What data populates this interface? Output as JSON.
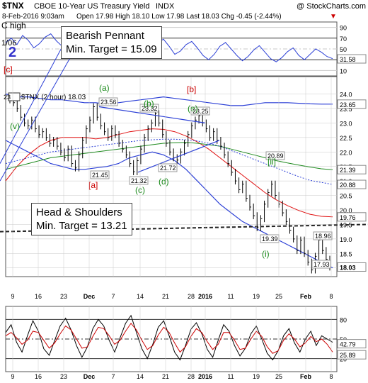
{
  "header": {
    "symbol": "$TNX",
    "name": "CBOE 10-Year US Treasury Yield",
    "exchange": "INDX",
    "copyright": "@ StockCharts.com",
    "date": "8-Feb-2016 9:03am",
    "quote": "Open 17.98  High 18.10  Low 17.98  Last 18.03  Chg -0.45 (-2.44%)",
    "chg_arrow": "▼"
  },
  "annotations": {
    "pennant": {
      "title": "Bearish Pennant",
      "target": "Min. Target = 15.09"
    },
    "hs": {
      "title": "Head & Shoulders",
      "target": "Min. Target = 13.21"
    }
  },
  "colors": {
    "price": "#000000",
    "blue_line": "#2b3fd6",
    "red_ma": "#e01010",
    "green_ma": "#1e8a1e",
    "dotted_ma": "#2b3fd6",
    "wave_green": "#1a8a1a",
    "wave_red": "#cc0000",
    "neckline": "#222222",
    "rsi_line": "#2b3fd6",
    "grid": "#c9c9c9",
    "panel_border": "#555555"
  },
  "chart_data": [
    {
      "type": "line",
      "panel": "top-rsi",
      "ylabels": [
        "90",
        "70",
        "50",
        "30",
        "10"
      ],
      "ylim": [
        0,
        100
      ],
      "last_value_label": "31.58",
      "side_labels": [
        "C high",
        "2",
        "1/06",
        "[c]"
      ],
      "points": [
        62,
        70,
        58,
        75,
        66,
        52,
        60,
        72,
        78,
        65,
        55,
        60,
        68,
        58,
        45,
        52,
        62,
        70,
        60,
        48,
        55,
        66,
        72,
        60,
        50,
        42,
        50,
        62,
        68,
        55,
        40,
        46,
        58,
        64,
        52,
        38,
        30,
        40,
        55,
        62,
        50,
        38,
        28,
        36,
        48,
        56,
        44,
        32,
        26,
        34,
        45,
        52,
        38,
        30,
        40,
        50,
        44,
        36,
        32
      ]
    },
    {
      "type": "line",
      "panel": "main",
      "title": "$TNX (2 hour) 18.03",
      "x_tick_labels": [
        "9",
        "16",
        "23",
        "Dec",
        "7",
        "14",
        "21",
        "28",
        "2016",
        "11",
        "19",
        "25",
        "Feb",
        "8"
      ],
      "ylim": [
        17.7,
        24.6
      ],
      "ylabels": [
        "24.0",
        "23.5",
        "23.0",
        "22.5",
        "22.0",
        "21.5",
        "21.0",
        "20.5",
        "20.0",
        "19.5",
        "19.0",
        "18.5",
        "18.0"
      ],
      "right_value_labels": [
        "23.65",
        "21.39",
        "20.88",
        "19.76",
        "18.03"
      ],
      "price": [
        23.8,
        23.7,
        23.5,
        23.2,
        23.0,
        22.9,
        23.1,
        22.8,
        22.6,
        22.7,
        22.5,
        22.3,
        22.4,
        22.2,
        22.0,
        21.8,
        22.1,
        21.6,
        21.45,
        21.9,
        22.4,
        22.8,
        23.1,
        23.56,
        23.2,
        22.9,
        22.7,
        22.5,
        22.8,
        22.6,
        22.3,
        22.1,
        21.9,
        21.6,
        21.32,
        21.7,
        22.1,
        22.5,
        22.8,
        23.0,
        23.32,
        23.0,
        22.6,
        22.3,
        22.0,
        21.8,
        21.72,
        22.0,
        22.3,
        22.6,
        22.9,
        23.1,
        23.25,
        23.0,
        22.8,
        22.5,
        22.7,
        22.4,
        22.2,
        21.9,
        21.6,
        21.3,
        21.0,
        20.7,
        20.89,
        20.4,
        20.1,
        19.8,
        19.39,
        19.7,
        20.2,
        20.6,
        20.89,
        20.5,
        20.2,
        19.9,
        19.6,
        19.3,
        19.0,
        18.6,
        18.96,
        18.5,
        18.2,
        17.93,
        18.4,
        18.96,
        18.6,
        18.3,
        18.03
      ],
      "upper_band": [
        24.0,
        23.9,
        23.9,
        23.85,
        23.8,
        23.8,
        23.75,
        23.7,
        23.7,
        23.65,
        23.7,
        23.75,
        23.8,
        23.85,
        23.9,
        23.85,
        23.8,
        23.75,
        23.7,
        23.65,
        23.6,
        23.6,
        23.65,
        23.7,
        23.7,
        23.7,
        23.68,
        23.66,
        23.65,
        23.65
      ],
      "lower_band": [
        22.4,
        22.2,
        22.0,
        21.8,
        21.6,
        21.5,
        21.4,
        21.4,
        21.45,
        21.5,
        21.6,
        21.8,
        21.9,
        22.0,
        21.9,
        21.7,
        21.4,
        21.0,
        20.6,
        20.2,
        19.9,
        19.6,
        19.4,
        19.2,
        19.0,
        18.8,
        18.6,
        18.4,
        18.2,
        18.0
      ],
      "red_ma": [
        21.0,
        21.5,
        21.9,
        22.2,
        22.4,
        22.5,
        22.5,
        22.5,
        22.45,
        22.5,
        22.6,
        22.7,
        22.75,
        22.8,
        22.78,
        22.7,
        22.55,
        22.35,
        22.1,
        21.8,
        21.5,
        21.2,
        20.9,
        20.6,
        20.35,
        20.15,
        19.98,
        19.85,
        19.78,
        19.76
      ],
      "green_ma": [
        21.4,
        21.5,
        21.6,
        21.7,
        21.8,
        21.85,
        21.9,
        21.95,
        22.0,
        22.05,
        22.1,
        22.15,
        22.2,
        22.25,
        22.3,
        22.32,
        22.33,
        22.3,
        22.25,
        22.2,
        22.1,
        22.0,
        21.9,
        21.8,
        21.7,
        21.62,
        21.55,
        21.48,
        21.42,
        21.39
      ],
      "dotted_ma": [
        21.6,
        21.7,
        21.8,
        21.9,
        22.0,
        22.05,
        22.1,
        22.15,
        22.2,
        22.25,
        22.3,
        22.35,
        22.4,
        22.42,
        22.44,
        22.44,
        22.42,
        22.38,
        22.3,
        22.2,
        22.05,
        21.9,
        21.75,
        21.6,
        21.45,
        21.3,
        21.15,
        21.02,
        20.95,
        20.88
      ],
      "point_labels": [
        "21.45",
        "23.56",
        "21.32",
        "23.32",
        "21.72",
        "23.25",
        "20.89",
        "19.39",
        "18.96",
        "17.93"
      ],
      "wave_labels": [
        "(v)",
        "(a)",
        "(b)",
        "(c)",
        "(d)",
        "(e)",
        "[ii]",
        "(i)",
        "[a]",
        "[b]",
        "[a]"
      ],
      "neckline": [
        19.25,
        19.5
      ]
    },
    {
      "type": "line",
      "panel": "bottom-rsi",
      "ylabels": [
        "80",
        "50",
        "20"
      ],
      "ylim": [
        0,
        100
      ],
      "last_value_labels": [
        "42.79",
        "25.89"
      ],
      "x_tick_labels": [
        "9",
        "16",
        "23",
        "Dec",
        "7",
        "14",
        "21",
        "28",
        "2016",
        "11",
        "19",
        "25",
        "Feb",
        "8"
      ],
      "series": [
        {
          "points": [
            60,
            72,
            45,
            30,
            55,
            78,
            62,
            35,
            25,
            48,
            70,
            82,
            64,
            40,
            22,
            38,
            66,
            80,
            70,
            48,
            30,
            52,
            74,
            86,
            60,
            35,
            20,
            42,
            68,
            78,
            55,
            30,
            18,
            40,
            65,
            75,
            58,
            34,
            22,
            48,
            72,
            62,
            40,
            24,
            36,
            58,
            70,
            50,
            28,
            18,
            32,
            55,
            66,
            44,
            30,
            50,
            62,
            40,
            55,
            50,
            45
          ]
        },
        {
          "points": [
            55,
            60,
            52,
            42,
            48,
            62,
            60,
            48,
            36,
            44,
            58,
            70,
            64,
            50,
            36,
            38,
            54,
            68,
            66,
            55,
            42,
            48,
            62,
            74,
            64,
            48,
            34,
            40,
            56,
            68,
            60,
            44,
            30,
            38,
            54,
            66,
            60,
            46,
            34,
            42,
            60,
            60,
            48,
            34,
            36,
            50,
            62,
            54,
            38,
            28,
            32,
            48,
            58,
            50,
            38,
            44,
            54,
            46,
            50,
            42,
            30
          ]
        }
      ]
    }
  ]
}
